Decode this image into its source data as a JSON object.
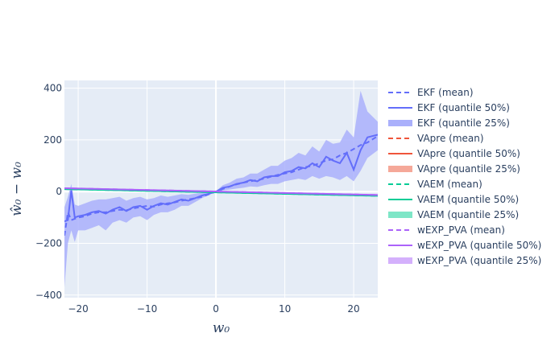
{
  "chart_data": {
    "type": "line",
    "xlabel": "w₀",
    "ylabel": "ŵ₀ − w₀",
    "xlim": [
      -22,
      23.5
    ],
    "ylim": [
      -410,
      430
    ],
    "x_ticks": [
      -20,
      -10,
      0,
      10,
      20
    ],
    "y_ticks": [
      -400,
      -200,
      0,
      200,
      400
    ],
    "grid": true,
    "legend_position": "right",
    "colors": {
      "plot_bg": "#e5ecf6",
      "grid": "#ffffff",
      "ekf": "#636efa",
      "ekf_band": "#aab0fb",
      "vapre": "#ef553b",
      "vapre_band": "#f5a899",
      "vaem": "#00cc96",
      "vaem_band": "#7ee6c7",
      "wexp": "#ab63fa",
      "wexp_band": "#d4b0fc"
    },
    "series": [
      {
        "name": "EKF (mean)",
        "style": "dash",
        "color": "#636efa",
        "x": [
          -22,
          -21.5,
          -21,
          -20,
          -19,
          -18,
          -17,
          -16,
          -15,
          -14,
          -13,
          -12,
          -11,
          -10,
          -9,
          -8,
          -7,
          -6,
          -5,
          -4,
          -3,
          -2,
          -1,
          0,
          1,
          2,
          3,
          4,
          5,
          6,
          7,
          8,
          9,
          10,
          11,
          12,
          13,
          14,
          15,
          16,
          17,
          18,
          19,
          20,
          21,
          22,
          23.5
        ],
        "y": [
          -170,
          -80,
          -110,
          -100,
          -95,
          -85,
          -80,
          -80,
          -75,
          -70,
          -72,
          -65,
          -60,
          -55,
          -58,
          -50,
          -45,
          -42,
          -35,
          -30,
          -25,
          -20,
          -10,
          0,
          10,
          20,
          28,
          35,
          40,
          45,
          50,
          58,
          65,
          70,
          75,
          85,
          95,
          100,
          110,
          120,
          125,
          140,
          150,
          165,
          180,
          190,
          215
        ]
      },
      {
        "name": "EKF (quantile 50%)",
        "style": "solid",
        "color": "#636efa",
        "x": [
          -22,
          -21.5,
          -21,
          -20.5,
          -20,
          -19,
          -18,
          -17,
          -16,
          -15,
          -14,
          -13,
          -12,
          -11,
          -10,
          -9,
          -8,
          -7,
          -6,
          -5,
          -4,
          -3,
          -2,
          -1,
          0,
          1,
          2,
          3,
          4,
          5,
          6,
          7,
          8,
          9,
          10,
          11,
          12,
          13,
          14,
          15,
          16,
          17,
          18,
          19,
          20,
          21,
          22,
          23.5
        ],
        "y": [
          -115,
          -110,
          5,
          -100,
          -95,
          -90,
          -80,
          -75,
          -85,
          -70,
          -60,
          -75,
          -60,
          -55,
          -70,
          -55,
          -45,
          -50,
          -40,
          -30,
          -35,
          -25,
          -15,
          -8,
          0,
          15,
          20,
          30,
          35,
          45,
          40,
          55,
          60,
          60,
          75,
          80,
          95,
          90,
          110,
          95,
          135,
          120,
          110,
          150,
          85,
          160,
          210,
          220
        ]
      },
      {
        "name": "EKF (quantile 25%)",
        "style": "band",
        "color": "#aab0fb",
        "x": [
          -22,
          -21.5,
          -21,
          -20.5,
          -20,
          -19,
          -18,
          -17,
          -16,
          -15,
          -14,
          -13,
          -12,
          -11,
          -10,
          -9,
          -8,
          -7,
          -6,
          -5,
          -4,
          -3,
          -2,
          -1,
          0,
          1,
          2,
          3,
          4,
          5,
          6,
          7,
          8,
          9,
          10,
          11,
          12,
          13,
          14,
          15,
          16,
          17,
          18,
          19,
          20,
          21,
          22,
          23.5
        ],
        "y_low": [
          -370,
          -200,
          -150,
          -195,
          -150,
          -150,
          -140,
          -130,
          -150,
          -120,
          -110,
          -120,
          -100,
          -95,
          -110,
          -90,
          -80,
          -80,
          -70,
          -55,
          -55,
          -40,
          -25,
          -12,
          -2,
          5,
          8,
          12,
          15,
          20,
          18,
          25,
          30,
          30,
          40,
          45,
          50,
          45,
          60,
          50,
          60,
          55,
          45,
          60,
          40,
          80,
          130,
          160
        ],
        "y_high": [
          -60,
          -20,
          30,
          -50,
          -55,
          -45,
          -35,
          -30,
          -30,
          -25,
          -20,
          -35,
          -25,
          -20,
          -30,
          -25,
          -15,
          -20,
          -15,
          -10,
          -12,
          -8,
          -4,
          -2,
          2,
          25,
          35,
          50,
          55,
          70,
          70,
          85,
          100,
          100,
          120,
          130,
          150,
          140,
          175,
          155,
          200,
          185,
          190,
          240,
          210,
          390,
          310,
          270
        ]
      },
      {
        "name": "VApre (mean)",
        "style": "dash",
        "color": "#ef553b",
        "x": [
          -22,
          23.5
        ],
        "y": [
          12,
          -14
        ]
      },
      {
        "name": "VApre (quantile 50%)",
        "style": "solid",
        "color": "#ef553b",
        "x": [
          -22,
          23.5
        ],
        "y": [
          12,
          -14
        ]
      },
      {
        "name": "VApre (quantile 25%)",
        "style": "band",
        "color": "#f5a899",
        "x": [
          -22,
          23.5
        ],
        "y_low": [
          9,
          -17
        ],
        "y_high": [
          15,
          -11
        ]
      },
      {
        "name": "VAEM (mean)",
        "style": "dash",
        "color": "#00cc96",
        "x": [
          -22,
          23.5
        ],
        "y": [
          10,
          -16
        ]
      },
      {
        "name": "VAEM (quantile 50%)",
        "style": "solid",
        "color": "#00cc96",
        "x": [
          -22,
          23.5
        ],
        "y": [
          10,
          -16
        ]
      },
      {
        "name": "VAEM (quantile 25%)",
        "style": "band",
        "color": "#7ee6c7",
        "x": [
          -22,
          23.5
        ],
        "y_low": [
          7,
          -19
        ],
        "y_high": [
          13,
          -13
        ]
      },
      {
        "name": "wEXP_PVA (mean)",
        "style": "dash",
        "color": "#ab63fa",
        "x": [
          -22,
          23.5
        ],
        "y": [
          13,
          -13
        ]
      },
      {
        "name": "wEXP_PVA (quantile 50%)",
        "style": "solid",
        "color": "#ab63fa",
        "x": [
          -22,
          23.5
        ],
        "y": [
          13,
          -13
        ]
      },
      {
        "name": "wEXP_PVA (quantile 25%)",
        "style": "band",
        "color": "#d4b0fc",
        "x": [
          -22,
          23.5
        ],
        "y_low": [
          10,
          -16
        ],
        "y_high": [
          16,
          -10
        ]
      }
    ]
  }
}
